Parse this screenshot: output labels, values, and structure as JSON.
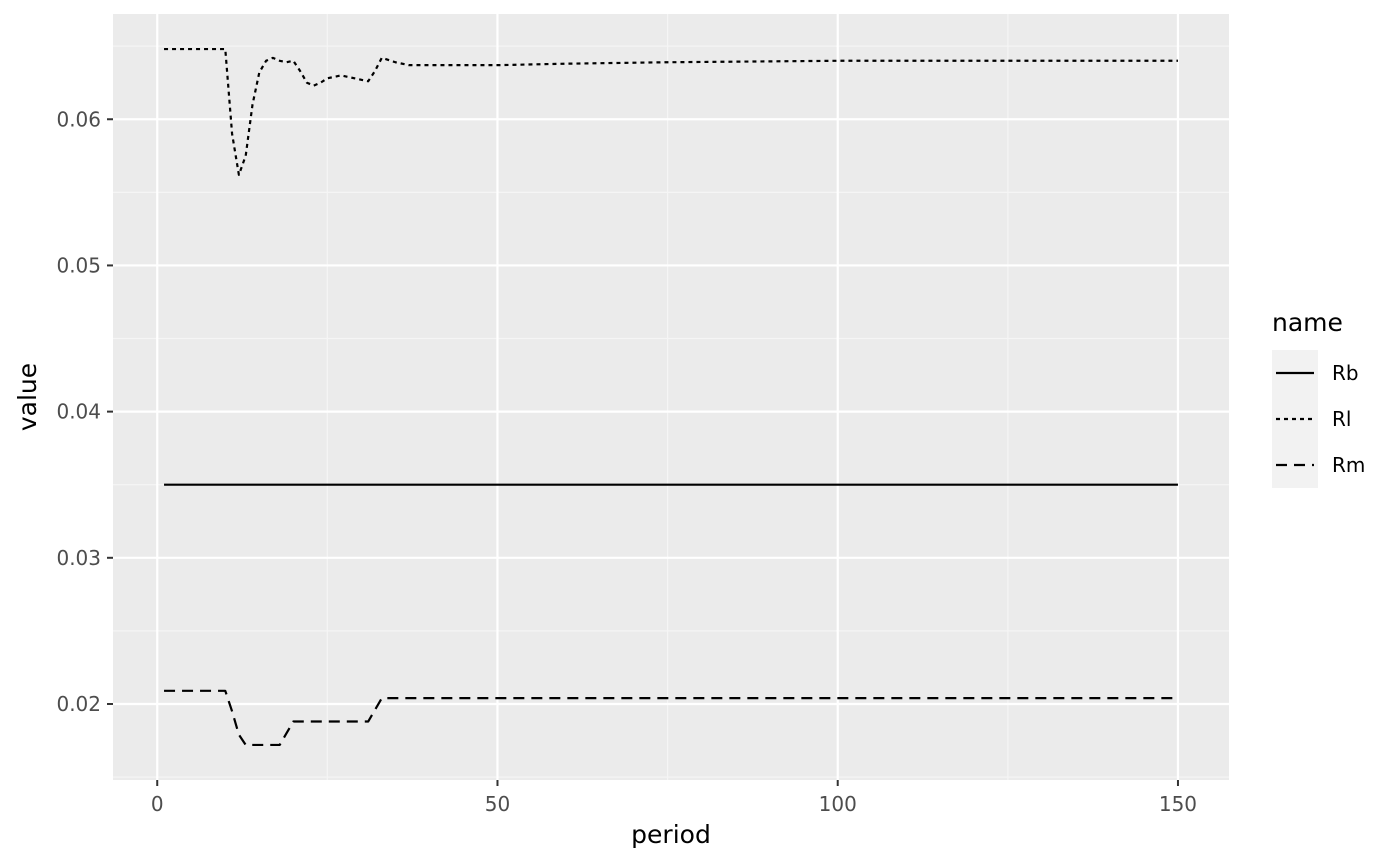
{
  "chart_data": {
    "type": "line",
    "title": "",
    "xlabel": "period",
    "ylabel": "value",
    "xlim": [
      -6.5,
      157.5
    ],
    "ylim": [
      0.0148,
      0.0672
    ],
    "x_ticks": [
      0,
      50,
      100,
      150
    ],
    "x_tick_labels": [
      "0",
      "50",
      "100",
      "150"
    ],
    "y_ticks": [
      0.02,
      0.03,
      0.04,
      0.05,
      0.06
    ],
    "y_tick_labels": [
      "0.02",
      "0.03",
      "0.04",
      "0.05",
      "0.06"
    ],
    "grid": true,
    "legend": {
      "title": "name",
      "position": "right"
    },
    "series": [
      {
        "name": "Rb",
        "linetype": "solid",
        "points": [
          [
            1,
            0.035
          ],
          [
            150,
            0.035
          ]
        ]
      },
      {
        "name": "Rl",
        "linetype": "dotted",
        "points": [
          [
            1,
            0.0648
          ],
          [
            10,
            0.0648
          ],
          [
            11,
            0.059
          ],
          [
            12,
            0.0562
          ],
          [
            13,
            0.0575
          ],
          [
            14,
            0.061
          ],
          [
            15,
            0.0632
          ],
          [
            16,
            0.064
          ],
          [
            17,
            0.0642
          ],
          [
            18,
            0.064
          ],
          [
            19,
            0.0639
          ],
          [
            20,
            0.064
          ],
          [
            21,
            0.0633
          ],
          [
            22,
            0.0625
          ],
          [
            23,
            0.0623
          ],
          [
            24,
            0.0625
          ],
          [
            25,
            0.0628
          ],
          [
            27,
            0.063
          ],
          [
            29,
            0.0628
          ],
          [
            31,
            0.0626
          ],
          [
            32,
            0.0633
          ],
          [
            33,
            0.0642
          ],
          [
            35,
            0.0639
          ],
          [
            37,
            0.0637
          ],
          [
            40,
            0.0637
          ],
          [
            50,
            0.0637
          ],
          [
            60,
            0.0638
          ],
          [
            75,
            0.0639
          ],
          [
            100,
            0.064
          ],
          [
            125,
            0.064
          ],
          [
            150,
            0.064
          ]
        ]
      },
      {
        "name": "Rm",
        "linetype": "dashed",
        "points": [
          [
            1,
            0.0209
          ],
          [
            10,
            0.0209
          ],
          [
            11,
            0.0195
          ],
          [
            12,
            0.0179
          ],
          [
            13,
            0.0172
          ],
          [
            18,
            0.0172
          ],
          [
            19,
            0.018
          ],
          [
            20,
            0.0188
          ],
          [
            31,
            0.0188
          ],
          [
            32,
            0.0196
          ],
          [
            33,
            0.0204
          ],
          [
            150,
            0.0204
          ]
        ]
      }
    ]
  },
  "colors": {
    "panel_background": "#ebebeb",
    "grid_major": "#ffffff",
    "grid_minor": "#f5f5f5",
    "line": "#000000",
    "legend_key_background": "#f2f2f2",
    "tick": "#333333"
  }
}
